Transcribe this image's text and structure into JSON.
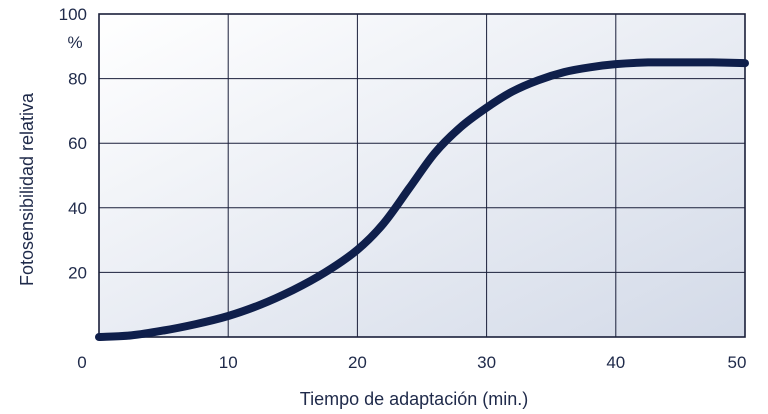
{
  "chart_data": {
    "type": "line",
    "xlabel": "Tiempo de adaptación (min.)",
    "ylabel": "Fotosensibilidad relativa",
    "y_unit": "%",
    "xlim": [
      0,
      50
    ],
    "ylim": [
      0,
      100
    ],
    "x_ticks": [
      0,
      10,
      20,
      30,
      40,
      50
    ],
    "y_ticks": [
      20,
      40,
      60,
      80,
      100
    ],
    "grid": true,
    "legend": "none",
    "colors": {
      "line": "#0f1f4b",
      "plot_bg_light": "#ffffff",
      "plot_bg_dark": "#d3dae8",
      "text": "#1f2a4a"
    },
    "series": [
      {
        "x": [
          0,
          2.5,
          5,
          7.5,
          10,
          12.5,
          15,
          17.5,
          20,
          22,
          24,
          26,
          28,
          30,
          32,
          34,
          36,
          38,
          40,
          42.5,
          45,
          47.5,
          50
        ],
        "y": [
          0,
          0.5,
          2,
          4,
          6.5,
          10,
          14.5,
          20,
          27,
          35,
          46,
          57,
          65,
          71,
          76,
          79.5,
          82,
          83.5,
          84.5,
          85,
          85,
          85,
          84.8
        ]
      }
    ]
  }
}
